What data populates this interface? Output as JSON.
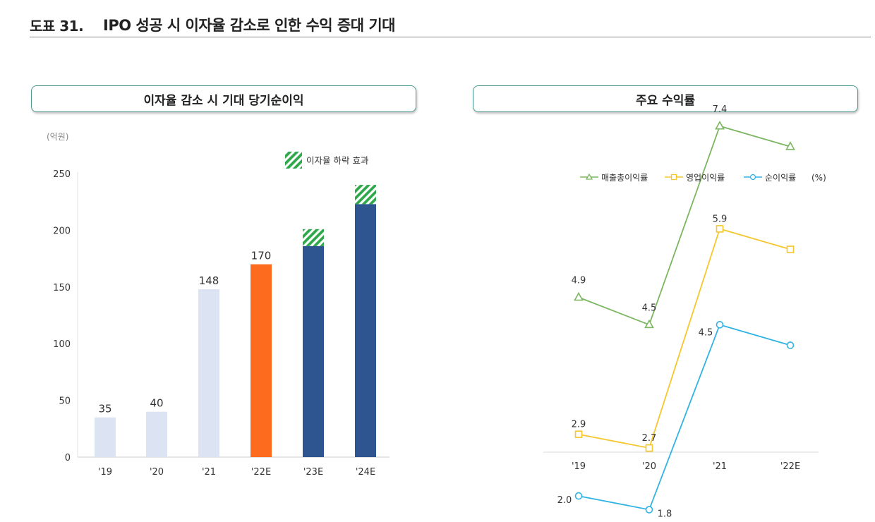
{
  "header": {
    "number": "도표 31.",
    "title": "IPO 성공 시 이자율 감소로 인한 수익 증대 기대"
  },
  "colors": {
    "light_bar": "#dce3f3",
    "orange_bar": "#fc6b1e",
    "navy_bar": "#2f5591",
    "hatch_green": "#2ea84a",
    "gross": "#7bb661",
    "operating": "#f5c72d",
    "net": "#31b3e3"
  },
  "chart_data": [
    {
      "type": "bar",
      "title": "이자율 감소 시 기대 당기순이익",
      "unit_label": "(억원)",
      "categories": [
        "'19",
        "'20",
        "'21",
        "'22E",
        "'23E",
        "'24E"
      ],
      "series": [
        {
          "name": "당기순이익",
          "values": [
            35,
            40,
            148,
            170,
            186,
            223
          ]
        },
        {
          "name": "이자율 하락 효과",
          "values": [
            0,
            0,
            0,
            0,
            15,
            17
          ]
        }
      ],
      "bar_styles": [
        "light",
        "light",
        "light",
        "orange",
        "navy",
        "navy"
      ],
      "data_labels": [
        "35",
        "40",
        "148",
        "170",
        "",
        ""
      ],
      "legend": "이자율 하락 효과",
      "yticks": [
        0,
        50,
        100,
        150,
        200,
        250
      ],
      "ylim": [
        0,
        250
      ]
    },
    {
      "type": "line",
      "title": "주요 수익률",
      "unit_label": "(%)",
      "categories": [
        "'19",
        "'20",
        "'21",
        "'22E"
      ],
      "series": [
        {
          "name": "매출총이익률",
          "values": [
            4.9,
            4.5,
            7.4,
            7.1
          ],
          "labels": [
            "4.9",
            "4.5",
            "7.4",
            ""
          ],
          "marker": "triangle",
          "color_key": "gross"
        },
        {
          "name": "영업이익률",
          "values": [
            2.9,
            2.7,
            5.9,
            5.6
          ],
          "labels": [
            "2.9",
            "2.7",
            "5.9",
            ""
          ],
          "marker": "square",
          "color_key": "operating"
        },
        {
          "name": "순이익률",
          "values": [
            2.0,
            1.8,
            4.5,
            4.2
          ],
          "labels": [
            "2.0",
            "1.8",
            "4.5",
            ""
          ],
          "marker": "circle",
          "color_key": "net"
        }
      ],
      "ylim": [
        0,
        8.5
      ]
    }
  ]
}
